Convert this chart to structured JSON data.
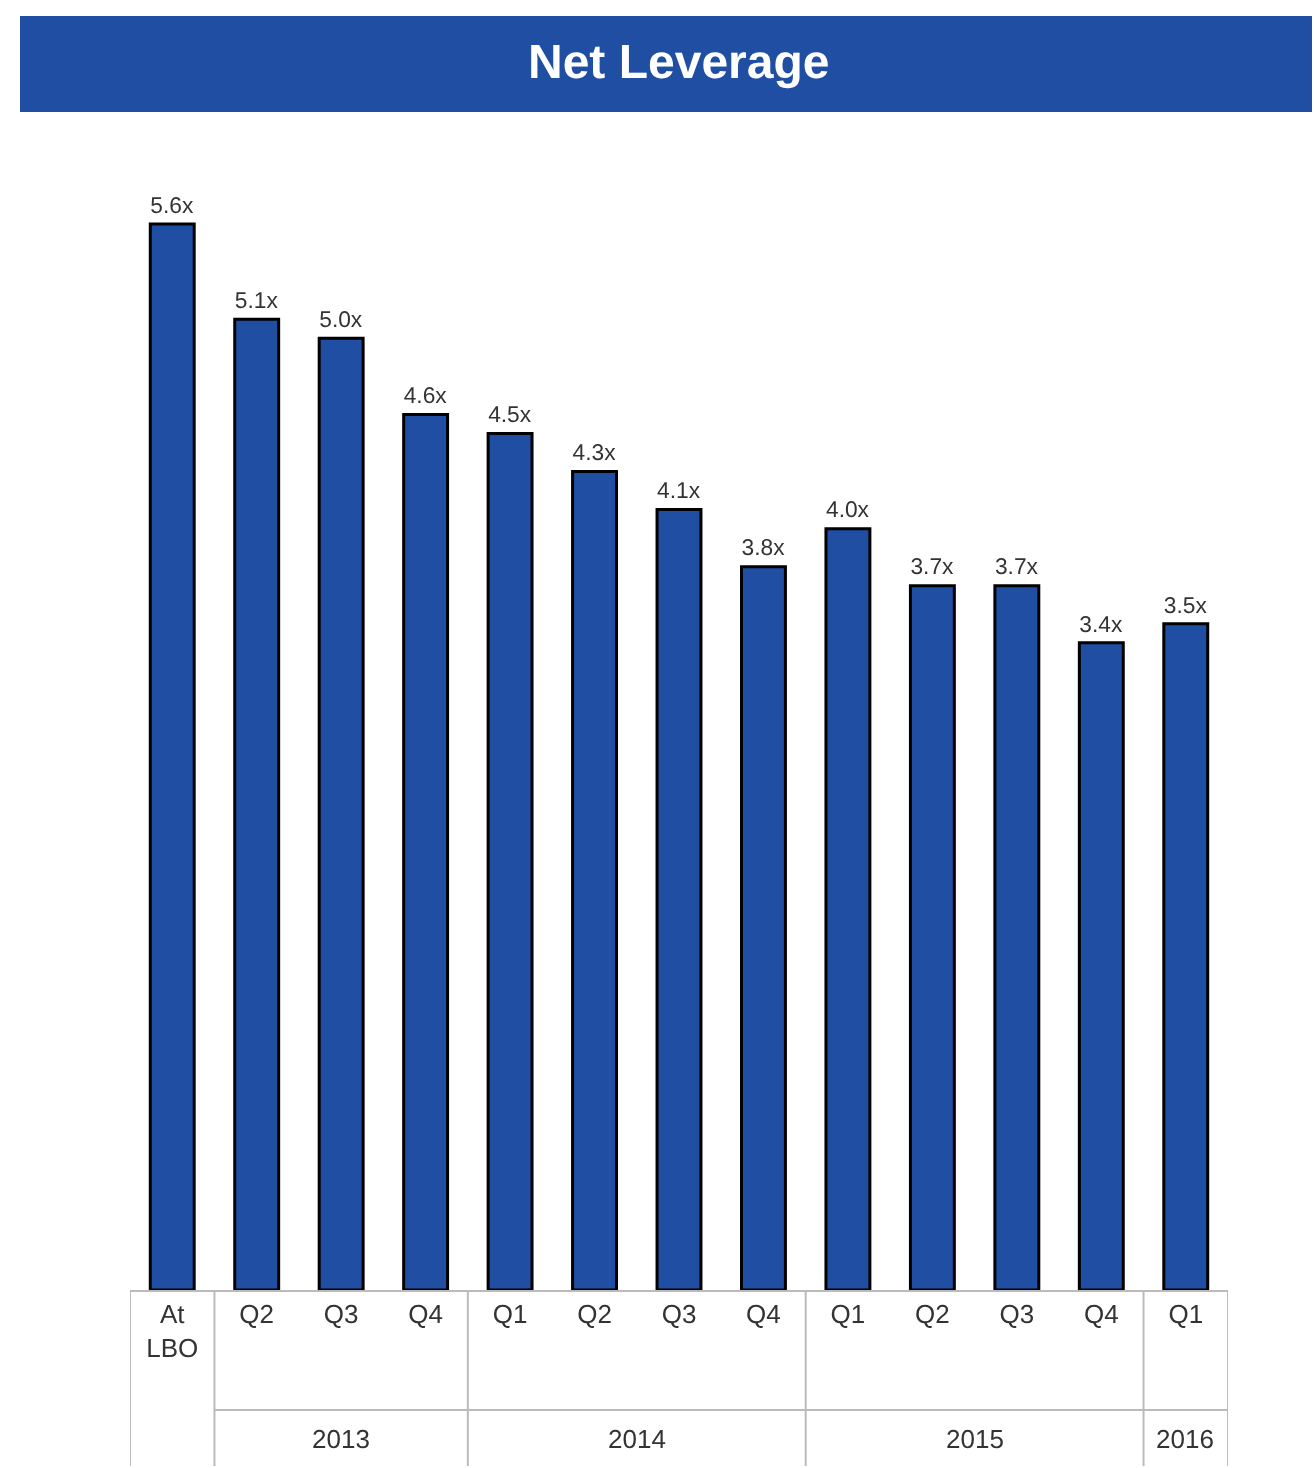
{
  "chart_data": {
    "type": "bar",
    "title": "Net Leverage",
    "categories": [
      "At LBO",
      "Q2",
      "Q3",
      "Q4",
      "Q1",
      "Q2",
      "Q3",
      "Q4",
      "Q1",
      "Q2",
      "Q3",
      "Q4",
      "Q1"
    ],
    "values": [
      5.6,
      5.1,
      5.0,
      4.6,
      4.5,
      4.3,
      4.1,
      3.8,
      4.0,
      3.7,
      3.7,
      3.4,
      3.5
    ],
    "value_labels": [
      "5.6x",
      "5.1x",
      "5.0x",
      "4.6x",
      "4.5x",
      "4.3x",
      "4.1x",
      "3.8x",
      "4.0x",
      "3.7x",
      "3.7x",
      "3.4x",
      "3.5x"
    ],
    "color": "#1f4ea3",
    "tick_labels": "x",
    "annotations": [
      "2013",
      "2014",
      "2015",
      "2016"
    ]
  }
}
